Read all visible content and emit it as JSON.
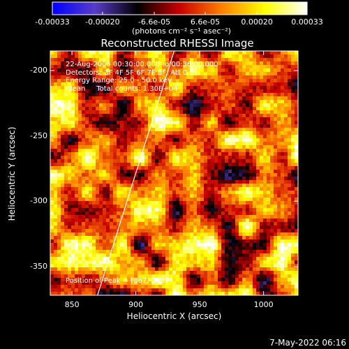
{
  "chart_data": {
    "type": "heatmap",
    "title": "Reconstructed RHESSI Image",
    "colorbar": {
      "ticks": [
        "-0.00033",
        "-0.00020",
        "-6.6e-05",
        "6.6e-05",
        "0.00020",
        "0.00033"
      ],
      "tick_values": [
        -0.00033,
        -0.0002,
        -6.6e-05,
        6.6e-05,
        0.0002,
        0.00033
      ],
      "range": [
        -0.00033,
        0.00033
      ],
      "unit_label": "(photons cm⁻² s⁻¹ asec⁻²)",
      "colors": [
        "#0000ff",
        "#5a3cc8",
        "#000000",
        "#c80000",
        "#ff8000",
        "#ffff00",
        "#ffffff"
      ]
    },
    "xlabel": "Heliocentric X (arcsec)",
    "ylabel": "Heliocentric Y (arcsec)",
    "xlim": [
      833,
      1027
    ],
    "ylim": [
      -372,
      -185
    ],
    "x_ticks": [
      850,
      900,
      950,
      1000
    ],
    "y_ticks": [
      -200,
      -250,
      -300,
      -350
    ],
    "grid": false,
    "limb_line": {
      "x": [
        870,
        930
      ],
      "y": [
        -372,
        -185
      ]
    },
    "peak": {
      "x": 867,
      "y": -322
    },
    "annotations": [
      "22-Aug-2006 00:30:00.000 to 00:36:00.000",
      "Detectors: 3F 4F 5F 6F 7F 8F, Att 0",
      "Energy Range: 25.0 - 50.0 keV",
      "Clean     Total counts: 1.30E+04",
      "Position of Peak = [867,-322]"
    ]
  },
  "timestamp": "7-May-2022 06:16"
}
